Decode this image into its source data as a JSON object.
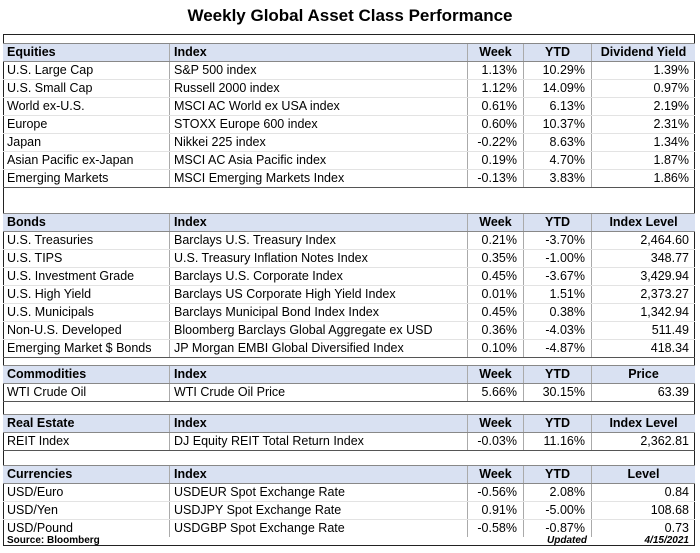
{
  "title": "Weekly Global Asset Class Performance",
  "sections": [
    {
      "header": [
        "Equities",
        "Index",
        "Week",
        "YTD",
        "Dividend Yield"
      ],
      "rows": [
        [
          "U.S. Large Cap",
          "S&P 500 index",
          "1.13%",
          "10.29%",
          "1.39%"
        ],
        [
          "U.S. Small Cap",
          "Russell 2000 index",
          "1.12%",
          "14.09%",
          "0.97%"
        ],
        [
          "World ex-U.S.",
          "MSCI AC World ex USA index",
          "0.61%",
          "6.13%",
          "2.19%"
        ],
        [
          "Europe",
          "STOXX Europe 600 index",
          "0.60%",
          "10.37%",
          "2.31%"
        ],
        [
          "Japan",
          "Nikkei 225 index",
          "-0.22%",
          "8.63%",
          "1.34%"
        ],
        [
          "Asian Pacific ex-Japan",
          "MSCI AC Asia Pacific index",
          "0.19%",
          "4.70%",
          "1.87%"
        ],
        [
          "Emerging Markets",
          "MSCI Emerging Markets Index",
          "-0.13%",
          "3.83%",
          "1.86%"
        ]
      ]
    },
    {
      "header": [
        "Bonds",
        "Index",
        "Week",
        "YTD",
        "Index Level"
      ],
      "rows": [
        [
          "U.S. Treasuries",
          "Barclays U.S. Treasury Index",
          "0.21%",
          "-3.70%",
          "2,464.60"
        ],
        [
          "U.S. TIPS",
          "U.S. Treasury Inflation Notes Index",
          "0.35%",
          "-1.00%",
          "348.77"
        ],
        [
          "U.S. Investment Grade",
          "Barclays U.S. Corporate Index",
          "0.45%",
          "-3.67%",
          "3,429.94"
        ],
        [
          "U.S. High Yield",
          "Barclays US Corporate High Yield Index",
          "0.01%",
          "1.51%",
          "2,373.27"
        ],
        [
          "U.S. Municipals",
          "Barclays Municipal Bond Index Index",
          "0.45%",
          "0.38%",
          "1,342.94"
        ],
        [
          "Non-U.S. Developed",
          "Bloomberg Barclays Global Aggregate ex USD",
          "0.36%",
          "-4.03%",
          "511.49"
        ],
        [
          "Emerging Market $ Bonds",
          "JP Morgan EMBI Global Diversified Index",
          "0.10%",
          "-4.87%",
          "418.34"
        ]
      ]
    },
    {
      "header": [
        "Commodities",
        "Index",
        "Week",
        "YTD",
        "Price"
      ],
      "rows": [
        [
          "WTI Crude Oil",
          "WTI Crude Oil Price",
          "5.66%",
          "30.15%",
          "63.39"
        ]
      ]
    },
    {
      "header": [
        "Real Estate",
        "Index",
        "Week",
        "YTD",
        "Index Level"
      ],
      "rows": [
        [
          "REIT Index",
          "DJ Equity REIT Total Return Index",
          "-0.03%",
          "11.16%",
          "2,362.81"
        ]
      ]
    },
    {
      "header": [
        "Currencies",
        "Index",
        "Week",
        "YTD",
        "Level"
      ],
      "rows": [
        [
          "USD/Euro",
          "USDEUR Spot Exchange Rate",
          "-0.56%",
          "2.08%",
          "0.84"
        ],
        [
          "USD/Yen",
          "USDJPY Spot Exchange Rate",
          "0.91%",
          "-5.00%",
          "108.68"
        ],
        [
          "USD/Pound",
          "USDGBP Spot Exchange Rate",
          "-0.58%",
          "-0.87%",
          "0.73"
        ]
      ]
    }
  ],
  "footer": {
    "source": "Source: Bloomberg",
    "updated_label": "Updated",
    "updated_date": "4/15/2021"
  }
}
